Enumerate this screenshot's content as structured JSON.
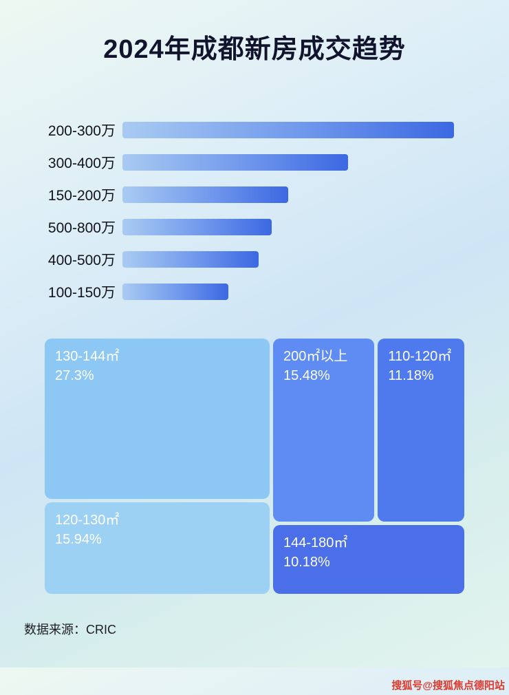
{
  "page": {
    "title": "2024年成都新房成交趋势",
    "source": "数据来源：CRIC",
    "watermark": "搜狐号@搜狐焦点德阳站"
  },
  "colors": {
    "bar_gradient_start": "#a9cbf2",
    "bar_gradient_end": "#3c68e2",
    "block_130_144": "#8cc8f3",
    "block_120_130": "#9dd1f4",
    "block_200_plus": "#5e8cf2",
    "block_110_120": "#4e7aee",
    "block_144_180": "#4b6fe9",
    "title_text": "#12142e",
    "watermark_text": "#e03a2e"
  },
  "chart_data": [
    {
      "type": "bar",
      "title": "2024年成都新房成交趋势",
      "orientation": "horizontal",
      "categories": [
        "200-300万",
        "300-400万",
        "150-200万",
        "500-800万",
        "400-500万",
        "100-150万"
      ],
      "values": [
        100,
        68,
        50,
        45,
        41,
        32
      ],
      "note": "bar lengths are relative percentages of the longest bar; no numeric labels shown in image",
      "xlabel": "",
      "ylabel": ""
    },
    {
      "type": "treemap",
      "items": [
        {
          "label": "130-144㎡",
          "value": "27.3%"
        },
        {
          "label": "120-130㎡",
          "value": "15.94%"
        },
        {
          "label": "200㎡以上",
          "value": "15.48%"
        },
        {
          "label": "110-120㎡",
          "value": "11.18%"
        },
        {
          "label": "144-180㎡",
          "value": "10.18%"
        }
      ]
    }
  ]
}
